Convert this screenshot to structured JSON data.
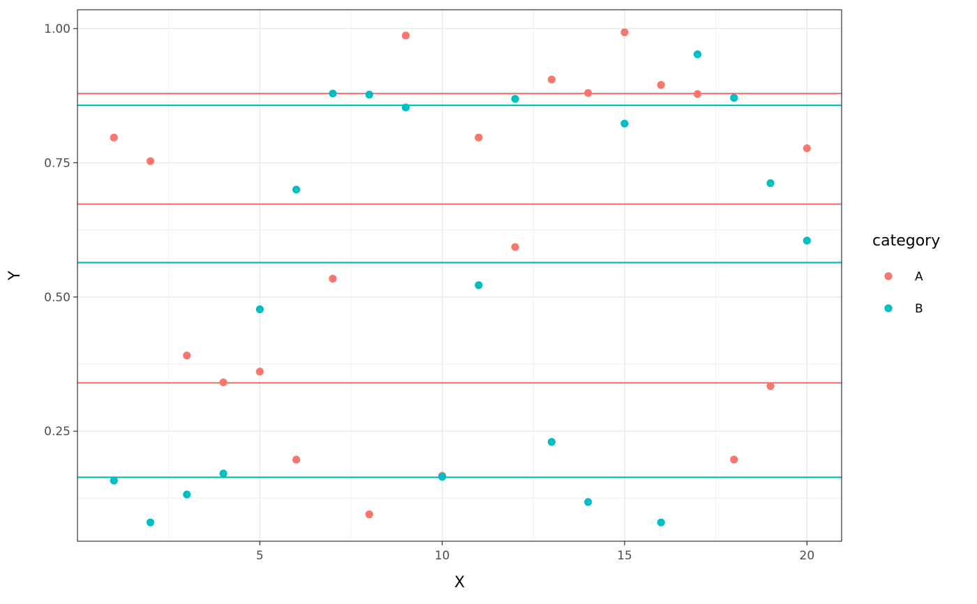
{
  "chart_data": {
    "type": "scatter",
    "xlabel": "X",
    "ylabel": "Y",
    "xlim": [
      0.0,
      20.95
    ],
    "ylim": [
      0.045,
      1.035
    ],
    "x_ticks": [
      5,
      10,
      15,
      20
    ],
    "y_ticks": [
      0.25,
      0.5,
      0.75,
      1.0
    ],
    "y_tick_labels": [
      "0.25",
      "0.50",
      "0.75",
      "1.00"
    ],
    "grid": true,
    "legend": {
      "title": "category",
      "position": "right"
    },
    "series": [
      {
        "name": "A",
        "color": "#F8766D",
        "x": [
          1,
          2,
          3,
          4,
          5,
          6,
          7,
          8,
          9,
          10,
          11,
          12,
          13,
          14,
          15,
          16,
          17,
          18,
          19,
          20
        ],
        "y": [
          0.797,
          0.753,
          0.391,
          0.341,
          0.361,
          0.197,
          0.534,
          0.095,
          0.987,
          0.167,
          0.797,
          0.593,
          0.905,
          0.88,
          0.993,
          0.895,
          0.878,
          0.197,
          0.334,
          0.777
        ],
        "hlines": [
          0.879,
          0.673,
          0.34
        ]
      },
      {
        "name": "B",
        "color": "#00BFC4",
        "x": [
          1,
          2,
          3,
          4,
          5,
          6,
          7,
          8,
          9,
          10,
          11,
          12,
          13,
          14,
          15,
          16,
          17,
          18,
          19,
          20
        ],
        "y": [
          0.158,
          0.08,
          0.132,
          0.171,
          0.477,
          0.7,
          0.879,
          0.877,
          0.853,
          0.165,
          0.522,
          0.869,
          0.23,
          0.118,
          0.823,
          0.08,
          0.952,
          0.871,
          0.712,
          0.605
        ],
        "hlines": [
          0.857,
          0.564,
          0.164
        ]
      }
    ]
  }
}
